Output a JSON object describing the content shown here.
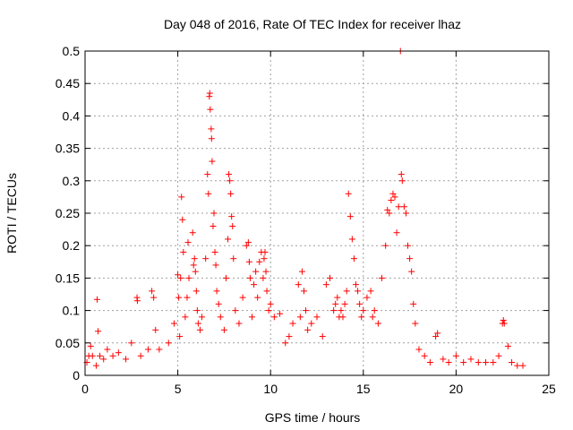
{
  "chart_data": {
    "type": "scatter",
    "title": "Day 048 of 2016, Rate Of TEC Index for receiver lhaz",
    "xlabel": "GPS time / hours",
    "ylabel": "ROTI / TECUs",
    "xlim": [
      0,
      25
    ],
    "ylim": [
      0,
      0.5
    ],
    "xticks": [
      "0",
      "5",
      "10",
      "15",
      "20",
      "25"
    ],
    "yticks": [
      "0",
      "0.05",
      "0.1",
      "0.15",
      "0.2",
      "0.25",
      "0.3",
      "0.35",
      "0.4",
      "0.45",
      "0.5"
    ],
    "grid": true,
    "marker": "+",
    "color": "#ff0000",
    "series": [
      {
        "x": [
          0.1,
          0.2,
          0.3,
          0.4,
          0.6,
          0.65,
          0.7,
          0.8,
          1.0,
          1.2,
          1.5,
          1.8,
          2.2,
          2.5,
          2.8,
          2.82,
          3.0,
          3.4,
          3.6,
          3.7,
          3.8,
          4.0,
          4.5,
          4.8,
          5.0,
          5.05,
          5.1,
          5.15,
          5.2,
          5.25,
          5.3,
          5.4,
          5.5,
          5.55,
          5.6,
          5.8,
          5.85,
          5.9,
          5.95,
          6.0,
          6.05,
          6.1,
          6.2,
          6.3,
          6.5,
          6.6,
          6.65,
          6.7,
          6.72,
          6.75,
          6.8,
          6.82,
          6.85,
          6.9,
          6.95,
          7.0,
          7.05,
          7.1,
          7.2,
          7.3,
          7.5,
          7.6,
          7.7,
          7.75,
          7.8,
          7.85,
          7.9,
          7.95,
          8.0,
          8.1,
          8.3,
          8.5,
          8.7,
          8.8,
          8.85,
          8.9,
          9.0,
          9.1,
          9.2,
          9.3,
          9.4,
          9.5,
          9.6,
          9.65,
          9.7,
          9.75,
          9.8,
          9.9,
          10.0,
          10.2,
          10.5,
          10.8,
          11.0,
          11.2,
          11.5,
          11.6,
          11.7,
          11.8,
          11.9,
          12.0,
          12.2,
          12.5,
          12.8,
          13.0,
          13.2,
          13.4,
          13.5,
          13.6,
          13.7,
          13.8,
          13.9,
          14.0,
          14.1,
          14.2,
          14.3,
          14.4,
          14.5,
          14.6,
          14.7,
          14.8,
          14.9,
          15.0,
          15.2,
          15.4,
          15.5,
          15.6,
          15.8,
          16.0,
          16.2,
          16.3,
          16.4,
          16.5,
          16.6,
          16.7,
          16.8,
          16.9,
          17.0,
          17.05,
          17.1,
          17.2,
          17.3,
          17.4,
          17.5,
          17.6,
          17.7,
          17.8,
          18.0,
          18.3,
          18.6,
          18.9,
          19.0,
          19.3,
          19.6,
          20.0,
          20.4,
          20.8,
          21.2,
          21.6,
          22.0,
          22.3,
          22.5,
          22.55,
          22.6,
          22.8,
          23.0,
          23.3,
          23.6
        ],
        "y": [
          0.02,
          0.03,
          0.045,
          0.03,
          0.015,
          0.117,
          0.068,
          0.03,
          0.025,
          0.04,
          0.03,
          0.035,
          0.025,
          0.05,
          0.12,
          0.115,
          0.03,
          0.04,
          0.13,
          0.12,
          0.07,
          0.04,
          0.05,
          0.08,
          0.155,
          0.12,
          0.06,
          0.15,
          0.275,
          0.24,
          0.19,
          0.09,
          0.12,
          0.205,
          0.15,
          0.22,
          0.17,
          0.18,
          0.16,
          0.13,
          0.1,
          0.08,
          0.07,
          0.09,
          0.18,
          0.31,
          0.28,
          0.43,
          0.435,
          0.41,
          0.38,
          0.365,
          0.33,
          0.23,
          0.25,
          0.19,
          0.17,
          0.13,
          0.11,
          0.09,
          0.07,
          0.15,
          0.21,
          0.31,
          0.3,
          0.28,
          0.245,
          0.23,
          0.18,
          0.1,
          0.08,
          0.12,
          0.2,
          0.205,
          0.175,
          0.15,
          0.09,
          0.14,
          0.16,
          0.12,
          0.175,
          0.19,
          0.15,
          0.18,
          0.19,
          0.16,
          0.13,
          0.1,
          0.11,
          0.09,
          0.095,
          0.05,
          0.06,
          0.08,
          0.14,
          0.09,
          0.16,
          0.13,
          0.1,
          0.07,
          0.08,
          0.09,
          0.06,
          0.14,
          0.15,
          0.1,
          0.11,
          0.12,
          0.09,
          0.1,
          0.09,
          0.11,
          0.13,
          0.28,
          0.245,
          0.21,
          0.18,
          0.14,
          0.13,
          0.11,
          0.09,
          0.1,
          0.12,
          0.13,
          0.09,
          0.1,
          0.08,
          0.15,
          0.2,
          0.255,
          0.25,
          0.27,
          0.28,
          0.275,
          0.22,
          0.26,
          0.5,
          0.31,
          0.3,
          0.26,
          0.25,
          0.2,
          0.18,
          0.16,
          0.11,
          0.08,
          0.04,
          0.03,
          0.02,
          0.06,
          0.065,
          0.025,
          0.02,
          0.03,
          0.02,
          0.025,
          0.02,
          0.02,
          0.02,
          0.03,
          0.08,
          0.085,
          0.08,
          0.045,
          0.02,
          0.015,
          0.015
        ]
      }
    ]
  }
}
